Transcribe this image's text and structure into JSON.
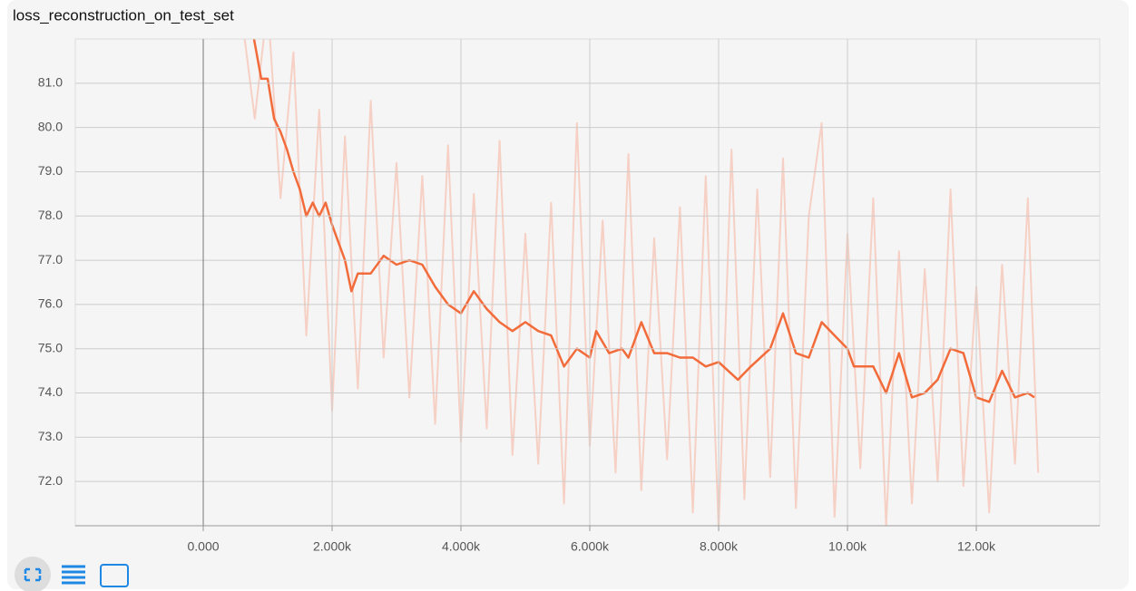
{
  "chart_data": {
    "type": "line",
    "title": "loss_reconstruction_on_test_set",
    "xlim": [
      -1986,
      13915
    ],
    "ylim": [
      71.0,
      82.0
    ],
    "xticks": [
      {
        "value": 0,
        "label": "0.000"
      },
      {
        "value": 2000,
        "label": "2.000k"
      },
      {
        "value": 4000,
        "label": "4.000k"
      },
      {
        "value": 6000,
        "label": "6.000k"
      },
      {
        "value": 8000,
        "label": "8.000k"
      },
      {
        "value": 10000,
        "label": "10.00k"
      },
      {
        "value": 12000,
        "label": "12.00k"
      }
    ],
    "yticks": [
      {
        "value": 72,
        "label": "72.0"
      },
      {
        "value": 73,
        "label": "73.0"
      },
      {
        "value": 74,
        "label": "74.0"
      },
      {
        "value": 75,
        "label": "75.0"
      },
      {
        "value": 76,
        "label": "76.0"
      },
      {
        "value": 77,
        "label": "77.0"
      },
      {
        "value": 78,
        "label": "78.0"
      },
      {
        "value": 79,
        "label": "79.0"
      },
      {
        "value": 80,
        "label": "80.0"
      },
      {
        "value": 81,
        "label": "81.0"
      }
    ],
    "grid": true,
    "series": [
      {
        "color": "#f6d0c4",
        "x": [
          600,
          800,
          1000,
          1200,
          1400,
          1600,
          1800,
          2000,
          2200,
          2400,
          2600,
          2800,
          3000,
          3200,
          3400,
          3600,
          3800,
          4000,
          4200,
          4400,
          4600,
          4800,
          5000,
          5200,
          5400,
          5600,
          5800,
          6000,
          6200,
          6400,
          6600,
          6800,
          7000,
          7200,
          7400,
          7600,
          7800,
          8000,
          8200,
          8400,
          8600,
          8800,
          9000,
          9200,
          9400,
          9600,
          9800,
          10000,
          10200,
          10400,
          10600,
          10800,
          11000,
          11200,
          11400,
          11600,
          11800,
          12000,
          12200,
          12400,
          12600,
          12800,
          12960
        ],
        "values": [
          82.5,
          80.2,
          82.8,
          78.4,
          81.7,
          75.3,
          80.4,
          73.6,
          79.8,
          74.1,
          80.6,
          74.8,
          79.2,
          73.9,
          78.9,
          73.3,
          79.6,
          72.9,
          78.5,
          73.2,
          79.7,
          72.6,
          77.6,
          72.4,
          78.3,
          71.5,
          80.1,
          72.8,
          77.9,
          72.2,
          79.4,
          71.8,
          77.5,
          72.5,
          78.2,
          71.3,
          78.9,
          70.9,
          79.5,
          71.6,
          78.6,
          72.1,
          79.3,
          71.4,
          78.0,
          80.1,
          71.2,
          77.6,
          72.3,
          78.4,
          71.0,
          77.2,
          71.5,
          76.8,
          72.0,
          78.6,
          71.9,
          76.4,
          71.3,
          76.9,
          72.4,
          78.4,
          72.2
        ]
      },
      {
        "color": "#f26b3a",
        "x": [
          750,
          900,
          1000,
          1100,
          1200,
          1300,
          1400,
          1500,
          1600,
          1700,
          1800,
          1900,
          2000,
          2100,
          2200,
          2300,
          2400,
          2600,
          2800,
          3000,
          3200,
          3400,
          3600,
          3800,
          4000,
          4200,
          4400,
          4600,
          4800,
          5000,
          5200,
          5400,
          5600,
          5800,
          6000,
          6100,
          6300,
          6500,
          6600,
          6800,
          7000,
          7200,
          7400,
          7600,
          7800,
          8000,
          8300,
          8500,
          8800,
          9000,
          9200,
          9400,
          9600,
          9800,
          10000,
          10100,
          10400,
          10600,
          10800,
          11000,
          11200,
          11400,
          11600,
          11800,
          12000,
          12200,
          12400,
          12600,
          12800,
          12900
        ],
        "values": [
          82.3,
          81.1,
          81.1,
          80.2,
          79.9,
          79.5,
          79.0,
          78.6,
          78.0,
          78.3,
          78.0,
          78.3,
          77.8,
          77.4,
          77.0,
          76.3,
          76.7,
          76.7,
          77.1,
          76.9,
          77.0,
          76.9,
          76.4,
          76.0,
          75.8,
          76.3,
          75.9,
          75.6,
          75.4,
          75.6,
          75.4,
          75.3,
          74.6,
          75.0,
          74.8,
          75.4,
          74.9,
          75.0,
          74.8,
          75.6,
          74.9,
          74.9,
          74.8,
          74.8,
          74.6,
          74.7,
          74.3,
          74.6,
          75.0,
          75.8,
          74.9,
          74.8,
          75.6,
          75.3,
          75.0,
          74.6,
          74.6,
          74.0,
          74.9,
          73.9,
          74.0,
          74.3,
          75.0,
          74.9,
          73.9,
          73.8,
          74.5,
          73.9,
          74.0,
          73.9
        ]
      }
    ]
  }
}
